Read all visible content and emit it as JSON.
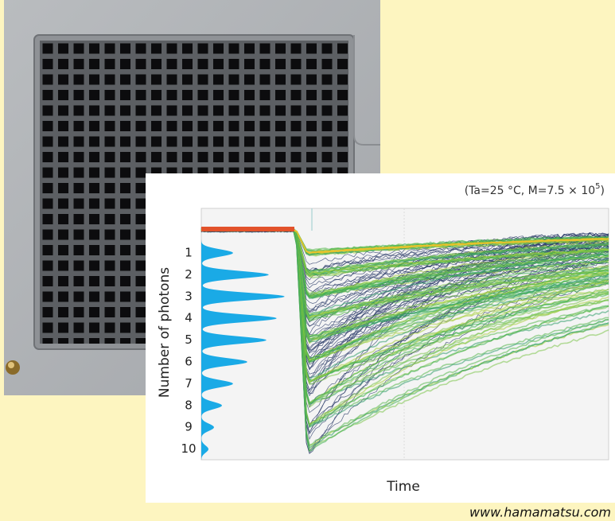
{
  "plot": {
    "condition": {
      "prefix": "(Ta=25 °C, M=7.5 × 10",
      "exponent": "5",
      "suffix": ")"
    },
    "y_label": "Number of photons",
    "y_levels": [
      "1",
      "2",
      "3",
      "4",
      "5",
      "6",
      "7",
      "8",
      "9",
      "10"
    ],
    "x_label": "Time"
  },
  "credit": "www.hamamatsu.com"
}
